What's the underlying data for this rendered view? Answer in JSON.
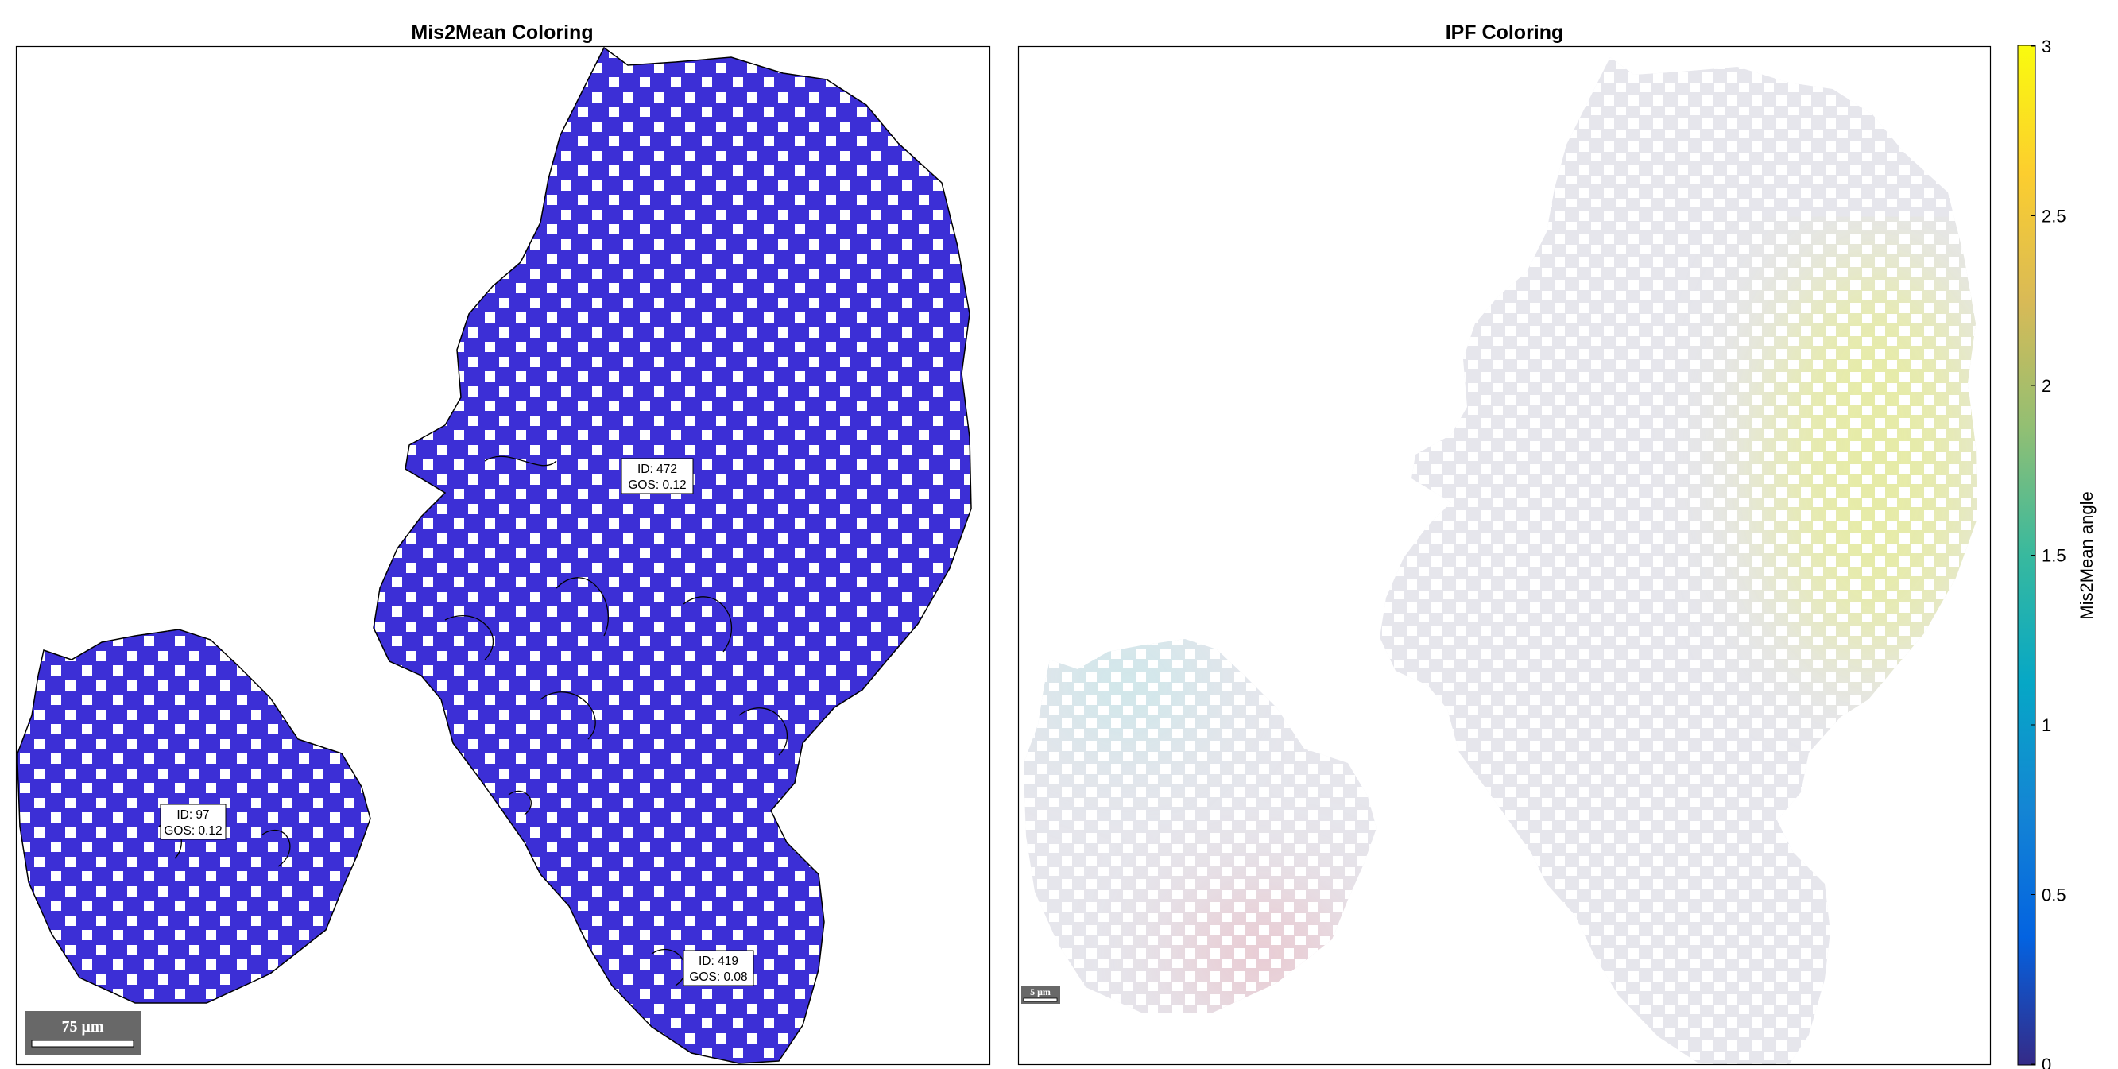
{
  "chart_data": [
    {
      "type": "heatmap",
      "title": "Mis2Mean Coloring",
      "grains": [
        {
          "id_label": "ID: 97",
          "gos_label": "GOS: 0.12",
          "id": 97,
          "gos": 0.12
        },
        {
          "id_label": "ID: 472",
          "gos_label": "GOS: 0.12",
          "id": 472,
          "gos": 0.12
        },
        {
          "id_label": "ID: 419",
          "gos_label": "GOS: 0.08",
          "id": 419,
          "gos": 0.08
        }
      ],
      "scalebar": {
        "label": "75 μm"
      },
      "colorbar": {
        "label": "Mis2Mean angle",
        "range": [
          0,
          3
        ],
        "ticks": [
          "0",
          "0.5",
          "1",
          "1.5",
          "2",
          "2.5",
          "3"
        ],
        "colormap": "parula"
      }
    },
    {
      "type": "heatmap",
      "title": "IPF Coloring",
      "scalebar": {
        "label": "5 μm"
      }
    }
  ],
  "colors": {
    "mis2mean_fill": "#3c2fd6",
    "ipf_base": "#e6e6ec",
    "ipf_yellow": "#e6ec9a",
    "ipf_cyan": "#bfe9ea",
    "ipf_pink": "#ebbcc4"
  }
}
